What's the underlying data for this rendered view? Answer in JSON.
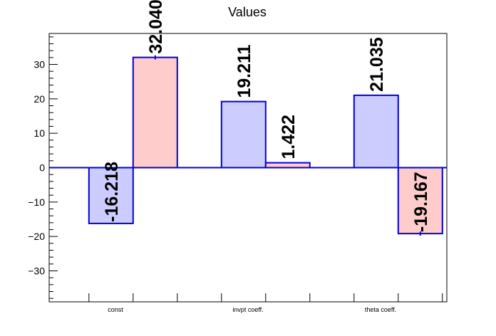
{
  "chart_data": {
    "type": "bar",
    "title": "Values",
    "categories": [
      "const",
      "invpt coeff.",
      "theta coeff."
    ],
    "series": [
      {
        "values": [
          -16.218,
          19.211,
          21.035
        ],
        "errors": [
          0,
          0,
          0
        ],
        "labels": [
          "-16.218",
          "19.211",
          "21.035"
        ]
      },
      {
        "values": [
          32.04,
          1.422,
          -19.167
        ],
        "errors": [
          0.6,
          0,
          0.6
        ],
        "labels": [
          "32.040",
          "1.422",
          "-19.167"
        ]
      }
    ],
    "ylim": [
      -39,
      39
    ],
    "yticks": [
      -30,
      -20,
      -10,
      0,
      10,
      20,
      30
    ],
    "ytick_labels": [
      "−30",
      "−20",
      "−10",
      "0",
      "10",
      "20",
      "30"
    ],
    "xlabel": "",
    "ylabel": "",
    "grid": false,
    "colors": {
      "series1_fill": "#ccccff",
      "series2_fill": "#ffcccc",
      "bar_edge": "#0000dd",
      "zero_line": "#0000dd",
      "axis": "#000000"
    }
  }
}
